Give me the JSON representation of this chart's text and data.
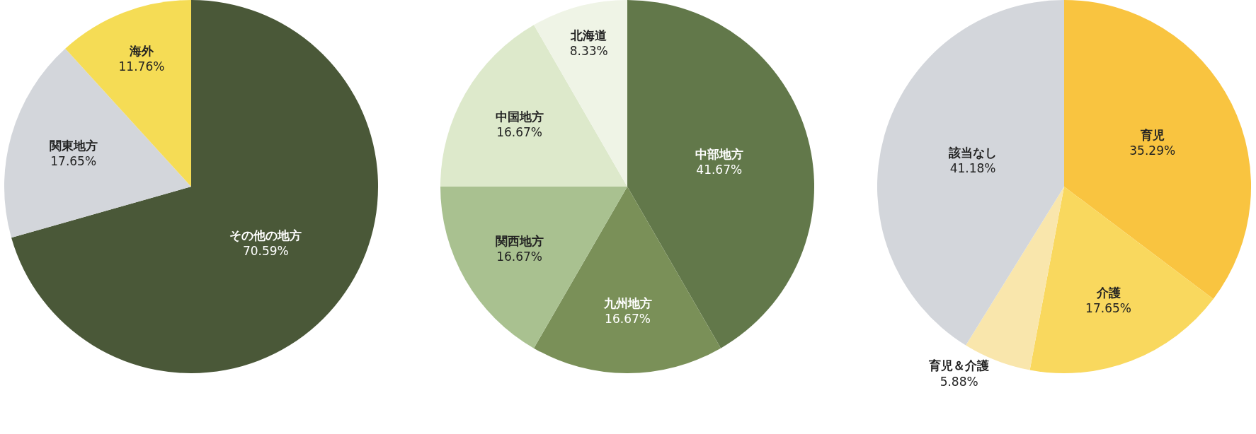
{
  "chart_data": [
    {
      "type": "pie",
      "categories": [
        "その他の地方",
        "関東地方",
        "海外"
      ],
      "values": [
        70.59,
        17.65,
        11.76
      ],
      "value_labels": [
        "70.59%",
        "17.65%",
        "11.76%"
      ],
      "colors": [
        "#4a5838",
        "#d3d6db",
        "#f5dc55"
      ],
      "legend": false
    },
    {
      "type": "pie",
      "categories": [
        "中部地方",
        "九州地方",
        "関西地方",
        "中国地方",
        "北海道"
      ],
      "values": [
        41.67,
        16.67,
        16.67,
        16.67,
        8.33
      ],
      "value_labels": [
        "41.67%",
        "16.67%",
        "16.67%",
        "16.67%",
        "8.33%"
      ],
      "colors": [
        "#62784a",
        "#7a9058",
        "#a9c190",
        "#dde9cb",
        "#eff4e6"
      ],
      "legend": false
    },
    {
      "type": "pie",
      "categories": [
        "育児",
        "介護",
        "育児＆介護",
        "該当なし"
      ],
      "values": [
        35.29,
        17.65,
        5.88,
        41.18
      ],
      "value_labels": [
        "35.29%",
        "17.65%",
        "5.88%",
        "41.18%"
      ],
      "colors": [
        "#f9c440",
        "#f9d85e",
        "#f9e6ac",
        "#d3d6db"
      ],
      "legend": false
    }
  ]
}
